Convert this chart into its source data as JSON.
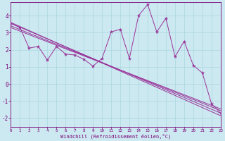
{
  "xlabel": "Windchill (Refroidissement éolien,°C)",
  "background_color": "#cce8f0",
  "grid_color": "#aad8e0",
  "line_color": "#993399",
  "xlim": [
    0,
    23
  ],
  "ylim": [
    -2.5,
    4.8
  ],
  "xticks": [
    0,
    1,
    2,
    3,
    4,
    5,
    6,
    7,
    8,
    9,
    10,
    11,
    12,
    13,
    14,
    15,
    16,
    17,
    18,
    19,
    20,
    21,
    22,
    23
  ],
  "yticks": [
    -2,
    -1,
    0,
    1,
    2,
    3,
    4
  ],
  "zigzag_x": [
    0,
    1,
    2,
    3,
    4,
    5,
    6,
    7,
    8,
    9,
    10,
    11,
    12,
    13,
    14,
    15,
    16,
    17,
    18,
    19,
    20,
    21,
    22,
    23
  ],
  "zigzag_y": [
    3.55,
    3.3,
    2.1,
    2.2,
    1.4,
    2.2,
    1.75,
    1.7,
    1.45,
    1.05,
    1.5,
    3.05,
    3.2,
    1.5,
    4.0,
    4.65,
    3.05,
    3.85,
    1.6,
    2.5,
    1.1,
    0.65,
    -1.15,
    -1.7
  ],
  "trend1_x": [
    0,
    23
  ],
  "trend1_y": [
    3.55,
    -1.7
  ],
  "trend2_x": [
    0,
    23
  ],
  "trend2_y": [
    3.4,
    -1.55
  ],
  "trend3_x": [
    0,
    23
  ],
  "trend3_y": [
    3.3,
    -1.45
  ],
  "trend4_x": [
    0,
    23
  ],
  "trend4_y": [
    3.6,
    -1.85
  ]
}
